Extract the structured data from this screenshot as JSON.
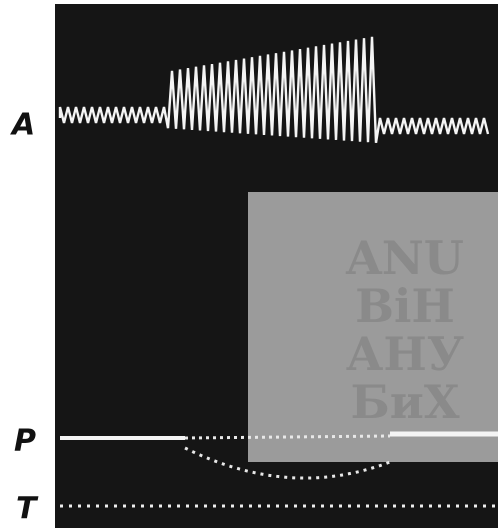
{
  "labels": {
    "a": "A",
    "p": "P",
    "t": "T"
  },
  "watermark": {
    "lines": [
      "ANU",
      "BiH",
      "АНУ",
      "БиХ"
    ]
  }
}
